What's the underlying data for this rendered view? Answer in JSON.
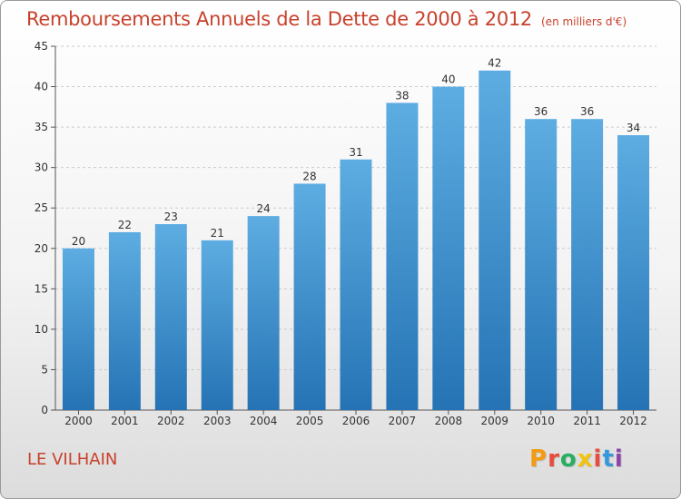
{
  "title": "Remboursements Annuels de la Dette de 2000 à 2012",
  "subtitle": "(en milliers d'€)",
  "location": "LE VILHAIN",
  "logo": {
    "letters": [
      "P",
      "r",
      "o",
      "x",
      "i",
      "t",
      "i"
    ],
    "colors": [
      "#f39c12",
      "#e74c3c",
      "#27ae60",
      "#f1c40f",
      "#e74c3c",
      "#3498db",
      "#8e44ad"
    ]
  },
  "colors": {
    "bar_top": "#5dade2",
    "bar_bottom": "#2573b4",
    "title": "#c8412c",
    "grid": "#cccccc"
  },
  "chart_data": {
    "type": "bar",
    "title": "Remboursements Annuels de la Dette de 2000 à 2012",
    "xlabel": "",
    "ylabel": "",
    "categories": [
      "2000",
      "2001",
      "2002",
      "2003",
      "2004",
      "2005",
      "2006",
      "2007",
      "2008",
      "2009",
      "2010",
      "2011",
      "2012"
    ],
    "values": [
      20,
      22,
      23,
      21,
      24,
      28,
      31,
      38,
      40,
      42,
      36,
      36,
      34
    ],
    "ylim": [
      0,
      45
    ],
    "yticks": [
      0,
      5,
      10,
      15,
      20,
      25,
      30,
      35,
      40,
      45
    ],
    "grid": true
  }
}
